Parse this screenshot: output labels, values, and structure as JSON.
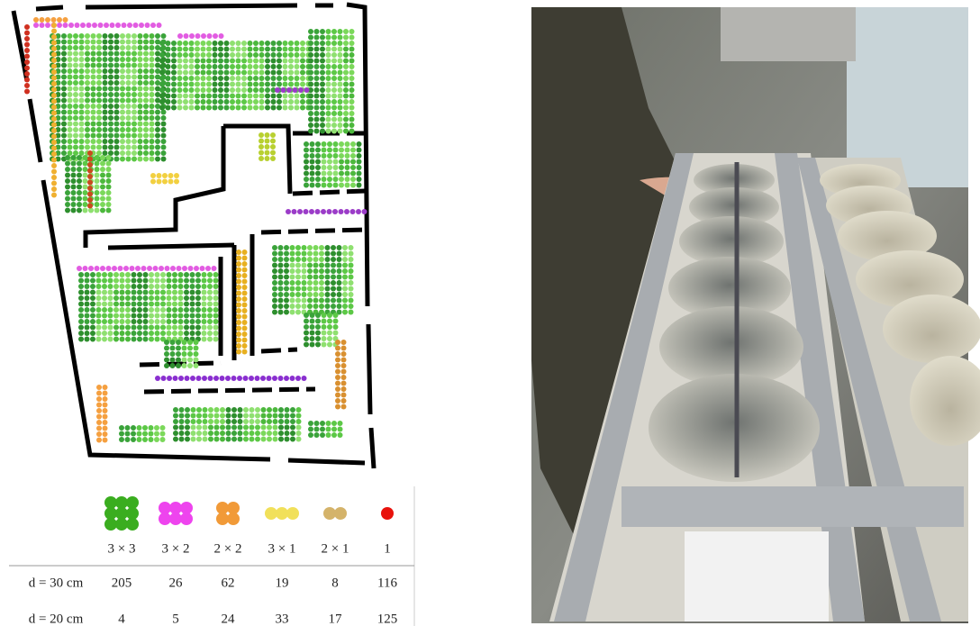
{
  "table": {
    "header": [
      "3 × 3",
      "3 × 2",
      "2 × 2",
      "3 × 1",
      "2 × 1",
      "1"
    ],
    "rows": [
      {
        "label": "d = 30 cm",
        "values": [
          205,
          26,
          62,
          19,
          8,
          116
        ]
      },
      {
        "label": "d = 20 cm",
        "values": [
          4,
          5,
          24,
          33,
          17,
          125
        ]
      }
    ]
  }
}
